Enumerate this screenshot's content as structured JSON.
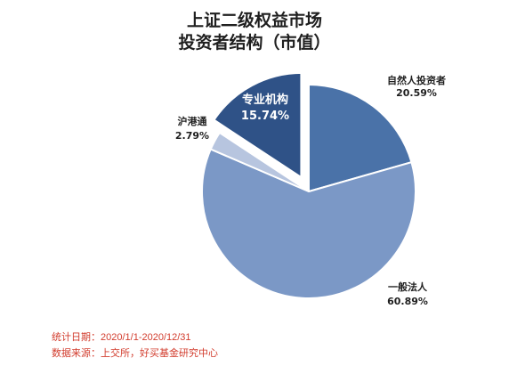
{
  "chart_data": {
    "type": "pie",
    "title": "上证二级权益市场",
    "subtitle": "投资者结构（市值）",
    "slices": [
      {
        "name": "自然人投资者",
        "value": 20.59,
        "label": "20.59%",
        "color": "#4a72a8"
      },
      {
        "name": "一般法人",
        "value": 60.89,
        "label": "60.89%",
        "color": "#7b98c6"
      },
      {
        "name": "沪港通",
        "value": 2.79,
        "label": "2.79%",
        "color": "#b7c5df"
      },
      {
        "name": "专业机构",
        "value": 15.74,
        "label": "15.74%",
        "color": "#2f5287",
        "exploded": true
      }
    ]
  },
  "footer": {
    "period": "统计日期：2020/1/1-2020/12/31",
    "source": "数据来源：上交所，好买基金研究中心"
  }
}
